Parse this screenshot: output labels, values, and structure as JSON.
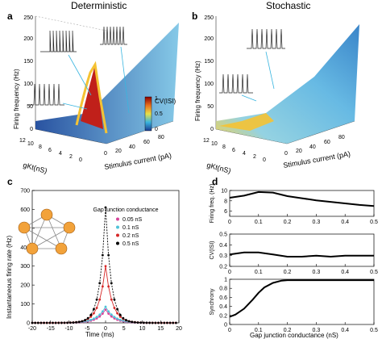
{
  "figure": {
    "panels": [
      "a",
      "b",
      "c",
      "d"
    ],
    "titles": {
      "a": "Deterministic",
      "b": "Stochastic"
    }
  },
  "chart_data": [
    {
      "panel": "a",
      "type": "surface3d",
      "title": "Deterministic",
      "xlabel": "Stimulus current (pA)",
      "ylabel": "gKt(nS)",
      "zlabel": "Firing frequency (Hz)",
      "x_ticks": [
        "0",
        "20",
        "40",
        "60",
        "80"
      ],
      "y_ticks": [
        "12",
        "10",
        "8",
        "6",
        "4",
        "2",
        "0"
      ],
      "z_ticks": [
        "0",
        "50",
        "100",
        "150",
        "200",
        "250"
      ],
      "colorbar": {
        "label": "CV(ISI)",
        "ticks": [
          "1",
          "0.5",
          "0"
        ],
        "range": [
          0,
          1
        ]
      }
    },
    {
      "panel": "b",
      "type": "surface3d",
      "title": "Stochastic",
      "xlabel": "Stimulus current (pA)",
      "ylabel": "gKt(nS)",
      "zlabel": "Firing frequency (Hz)",
      "x_ticks": [
        "0",
        "20",
        "40",
        "60",
        "80"
      ],
      "y_ticks": [
        "12",
        "10",
        "8",
        "6",
        "4",
        "2",
        "0"
      ],
      "z_ticks": [
        "0",
        "50",
        "100",
        "150",
        "200",
        "250"
      ]
    },
    {
      "panel": "c",
      "type": "line",
      "xlabel": "Time (ms)",
      "ylabel": "Instantaneous firing rate (Hz)",
      "xlim": [
        -20,
        20
      ],
      "ylim": [
        0,
        700
      ],
      "x_ticks": [
        -20,
        -15,
        -10,
        -5,
        0,
        5,
        10,
        15,
        20
      ],
      "y_ticks": [
        0,
        100,
        200,
        300,
        400,
        500,
        600,
        700
      ],
      "legend_title": "Gap junction conductance",
      "series": [
        {
          "name": "0.05 nS",
          "color": "#d6449a",
          "peak": 70,
          "width": 2.2
        },
        {
          "name": "0.1 nS",
          "color": "#4fc3d8",
          "peak": 85,
          "width": 2.4
        },
        {
          "name": "0.2 nS",
          "color": "#d62828",
          "peak": 300,
          "width": 1.8
        },
        {
          "name": "0.5 nS",
          "color": "#000000",
          "peak": 610,
          "width": 1.5
        }
      ]
    },
    {
      "panel": "d",
      "type": "line",
      "subplots": [
        {
          "ylabel": "Firing freq. (Hz)",
          "ylim": [
            5,
            10
          ],
          "y_ticks": [
            6,
            8,
            10
          ],
          "x": [
            0,
            0.05,
            0.1,
            0.15,
            0.2,
            0.25,
            0.3,
            0.35,
            0.4,
            0.45,
            0.5
          ],
          "y": [
            8.6,
            9.0,
            9.7,
            9.6,
            8.9,
            8.5,
            8.1,
            7.8,
            7.5,
            7.2,
            7.0
          ]
        },
        {
          "ylabel": "CV(ISI)",
          "ylim": [
            0.2,
            0.5
          ],
          "y_ticks": [
            0.2,
            0.3,
            0.4,
            0.5
          ],
          "x": [
            0,
            0.05,
            0.1,
            0.15,
            0.2,
            0.25,
            0.3,
            0.35,
            0.4,
            0.45,
            0.5
          ],
          "y": [
            0.31,
            0.33,
            0.33,
            0.31,
            0.29,
            0.29,
            0.3,
            0.29,
            0.3,
            0.3,
            0.3
          ]
        },
        {
          "ylabel": "Synchrony",
          "ylim": [
            0,
            1
          ],
          "y_ticks": [
            0,
            0.2,
            0.4,
            0.6,
            0.8,
            1
          ],
          "x": [
            0,
            0.02,
            0.05,
            0.08,
            0.1,
            0.12,
            0.15,
            0.18,
            0.2,
            0.25,
            0.3,
            0.35,
            0.4,
            0.45,
            0.5
          ],
          "y": [
            0.17,
            0.22,
            0.35,
            0.55,
            0.7,
            0.82,
            0.92,
            0.97,
            0.98,
            0.98,
            0.98,
            0.98,
            0.98,
            0.98,
            0.98
          ]
        }
      ],
      "x_ticks": [
        0,
        0.1,
        0.2,
        0.3,
        0.4,
        0.5
      ],
      "xlabel": "Gap junction conductance (nS)"
    }
  ]
}
